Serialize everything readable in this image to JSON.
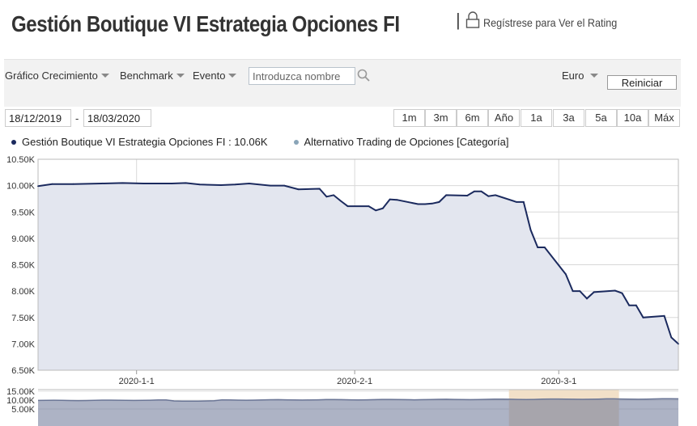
{
  "header": {
    "title": "Gestión Boutique VI Estrategia Opciones FI",
    "separator": "|",
    "rating_link": "Regístrese para Ver el Rating"
  },
  "toolbar": {
    "growth_label": "Gráfico Crecimiento",
    "benchmark_label": "Benchmark",
    "event_label": "Evento",
    "search_placeholder": "Introduzca nombre",
    "currency_label": "Euro",
    "reset_label": "Reiniciar"
  },
  "date_range": {
    "start": "18/12/2019",
    "separator": "-",
    "end": "18/03/2020"
  },
  "range_buttons": [
    "1m",
    "3m",
    "6m",
    "Año",
    "1a",
    "3a",
    "5a",
    "10a",
    "Máx"
  ],
  "icons": {
    "search": "search-icon",
    "lock": "lock-icon",
    "dropdown": "chevron-down-icon"
  },
  "colors": {
    "series_line": "#1b2a5e",
    "series_fill": "#e3e6ef",
    "category_dot": "#8aa5b8",
    "navigator_fill": "#6a7595",
    "navigator_window": "#f2e0c8"
  },
  "legend": {
    "fund": "Gestión Boutique VI Estrategia Opciones FI : 10.06K",
    "category": "Alternativo Trading de Opciones [Categoría]"
  },
  "chart_data": {
    "type": "area",
    "series": [
      {
        "name": "Gestión Boutique VI Estrategia Opciones FI",
        "x": [
          "2019-12-18",
          "2019-12-20",
          "2019-12-23",
          "2019-12-27",
          "2019-12-30",
          "2020-01-02",
          "2020-01-06",
          "2020-01-08",
          "2020-01-10",
          "2020-01-13",
          "2020-01-15",
          "2020-01-17",
          "2020-01-20",
          "2020-01-22",
          "2020-01-24",
          "2020-01-27",
          "2020-01-28",
          "2020-01-29",
          "2020-01-30",
          "2020-01-31",
          "2020-02-03",
          "2020-02-04",
          "2020-02-05",
          "2020-02-06",
          "2020-02-07",
          "2020-02-10",
          "2020-02-11",
          "2020-02-12",
          "2020-02-13",
          "2020-02-14",
          "2020-02-17",
          "2020-02-18",
          "2020-02-19",
          "2020-02-20",
          "2020-02-21",
          "2020-02-24",
          "2020-02-25",
          "2020-02-26",
          "2020-02-27",
          "2020-02-28",
          "2020-03-02",
          "2020-03-03",
          "2020-03-04",
          "2020-03-05",
          "2020-03-06",
          "2020-03-09",
          "2020-03-10",
          "2020-03-11",
          "2020-03-12",
          "2020-03-13",
          "2020-03-16",
          "2020-03-17",
          "2020-03-18"
        ],
        "y": [
          9.99,
          10.03,
          10.03,
          10.04,
          10.05,
          10.04,
          10.04,
          10.05,
          10.02,
          10.01,
          10.02,
          10.04,
          10.0,
          10.0,
          9.93,
          9.94,
          9.79,
          9.82,
          9.71,
          9.61,
          9.61,
          9.53,
          9.57,
          9.74,
          9.73,
          9.65,
          9.65,
          9.66,
          9.69,
          9.82,
          9.81,
          9.89,
          9.89,
          9.8,
          9.82,
          9.69,
          9.69,
          9.16,
          8.83,
          8.83,
          8.32,
          8.0,
          8.0,
          7.86,
          7.98,
          8.01,
          7.96,
          7.73,
          7.73,
          7.5,
          7.53,
          7.12,
          7.0
        ]
      }
    ],
    "x_tick_labels": [
      "2020-1-1",
      "2020-2-1",
      "2020-3-1"
    ],
    "x_ticks": [
      "2020-01-01",
      "2020-02-01",
      "2020-03-01"
    ],
    "y_tick_labels": [
      "10.50K",
      "10.00K",
      "9.50K",
      "9.00K",
      "8.50K",
      "8.00K",
      "7.50K",
      "7.00K",
      "6.50K"
    ],
    "ylim": [
      6.5,
      10.5
    ],
    "x_range": [
      "2019-12-18",
      "2020-03-18"
    ],
    "grid": true,
    "legend_position": "top-left",
    "navigator": {
      "y_tick_labels": [
        "15.00K",
        "10.00K",
        "5.00K"
      ]
    }
  }
}
